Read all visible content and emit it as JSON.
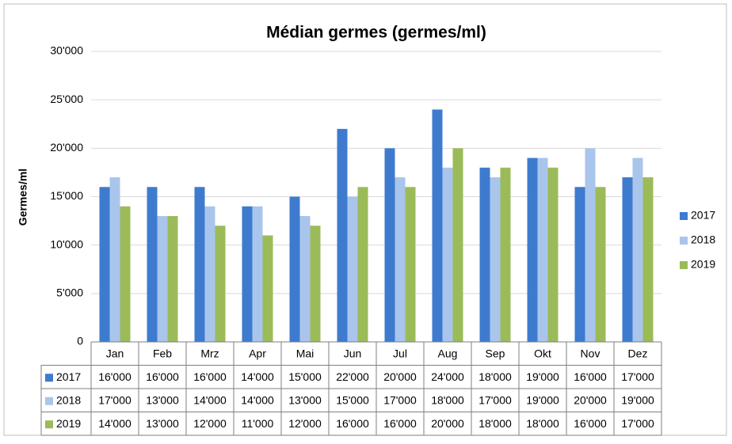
{
  "chart_data": {
    "type": "bar",
    "title": "Médian germes (germes/ml)",
    "y_label": "Germes/ml",
    "categories": [
      "Jan",
      "Feb",
      "Mrz",
      "Apr",
      "Mai",
      "Jun",
      "Jul",
      "Aug",
      "Sep",
      "Okt",
      "Nov",
      "Dez"
    ],
    "series": [
      {
        "name": "2017",
        "color": "#3e7bcf",
        "values": [
          16000,
          16000,
          16000,
          14000,
          15000,
          22000,
          20000,
          24000,
          18000,
          19000,
          16000,
          17000
        ],
        "value_labels": [
          "16'000",
          "16'000",
          "16'000",
          "14'000",
          "15'000",
          "22'000",
          "20'000",
          "24'000",
          "18'000",
          "19'000",
          "16'000",
          "17'000"
        ]
      },
      {
        "name": "2018",
        "color": "#a9c5ec",
        "values": [
          17000,
          13000,
          14000,
          14000,
          13000,
          15000,
          17000,
          18000,
          17000,
          19000,
          20000,
          19000
        ],
        "value_labels": [
          "17'000",
          "13'000",
          "14'000",
          "14'000",
          "13'000",
          "15'000",
          "17'000",
          "18'000",
          "17'000",
          "19'000",
          "20'000",
          "19'000"
        ]
      },
      {
        "name": "2019",
        "color": "#9bbb59",
        "values": [
          14000,
          13000,
          12000,
          11000,
          12000,
          16000,
          16000,
          20000,
          18000,
          18000,
          16000,
          17000
        ],
        "value_labels": [
          "14'000",
          "13'000",
          "12'000",
          "11'000",
          "12'000",
          "16'000",
          "16'000",
          "20'000",
          "18'000",
          "18'000",
          "16'000",
          "17'000"
        ]
      }
    ],
    "ylim": [
      0,
      30000
    ],
    "yticks": [
      0,
      {
        "value": 5000,
        "label": "5'000"
      },
      {
        "value": 10000,
        "label": "10'000"
      },
      {
        "value": 15000,
        "label": "15'000"
      },
      {
        "value": 20000,
        "label": "20'000"
      },
      {
        "value": 25000,
        "label": "25'000"
      },
      {
        "value": 30000,
        "label": "30'000"
      }
    ],
    "grid": true,
    "legend": "right"
  }
}
